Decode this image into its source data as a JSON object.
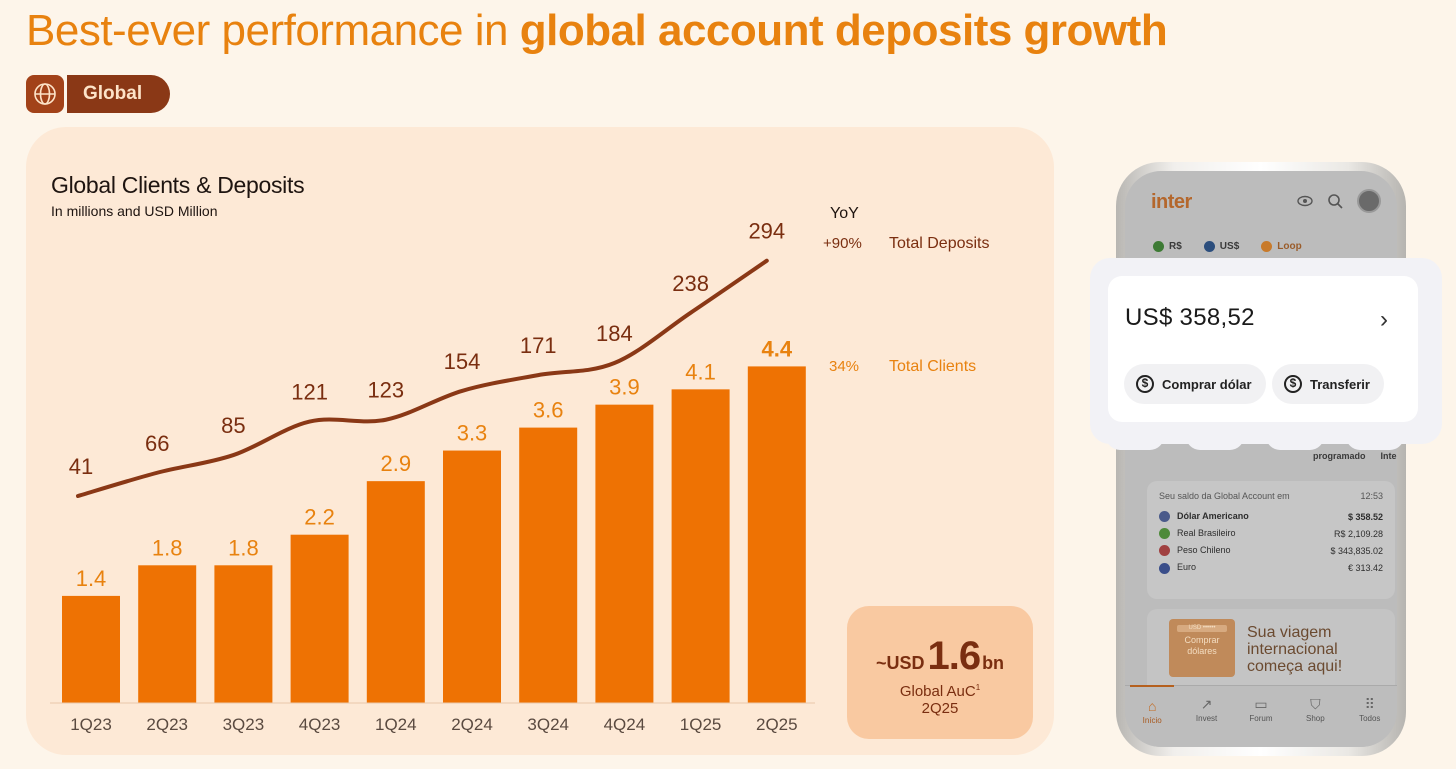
{
  "title": {
    "regular": "Best-ever performance in ",
    "bold": "global account deposits growth"
  },
  "tag": {
    "label": "Global",
    "icon": "globe-icon"
  },
  "chart_title": "Global Clients & Deposits",
  "chart_subtitle": "In millions and USD Million",
  "colors": {
    "bars": "#ee7203",
    "line": "#8a3816",
    "accent": "#e8820f",
    "background": "#fdf5ea",
    "panel": "#fde9d6"
  },
  "chart_data": {
    "type": "bar",
    "categories": [
      "1Q23",
      "2Q23",
      "3Q23",
      "4Q23",
      "1Q24",
      "2Q24",
      "3Q24",
      "4Q24",
      "1Q25",
      "2Q25"
    ],
    "series": [
      {
        "name": "Total Clients",
        "type": "bar",
        "values": [
          1.4,
          1.8,
          1.8,
          2.2,
          2.9,
          3.3,
          3.6,
          3.9,
          4.1,
          4.4
        ],
        "yoy": "34%"
      },
      {
        "name": "Total Deposits",
        "type": "line",
        "values": [
          41,
          66,
          85,
          121,
          123,
          154,
          171,
          184,
          238,
          294
        ],
        "yoy": "+90%"
      }
    ],
    "yoy_header": "YoY",
    "last_value_bold": "4.4"
  },
  "auc_box": {
    "prefix": "~USD",
    "value": "1.6",
    "unit": "bn",
    "label": "Global AuC",
    "superscript": "1",
    "period": "2Q25"
  },
  "phone": {
    "logo": "inter",
    "tabs": [
      {
        "label": "R$",
        "color": "#3d7a34"
      },
      {
        "label": "US$",
        "color": "#2c4e7d"
      },
      {
        "label": "Loop",
        "color": "#c87a2a"
      }
    ],
    "programado": "programado",
    "inter_label": "Inter",
    "card_header": "Seu saldo da Global Account em",
    "card_time": "12:53",
    "accounts": [
      {
        "name": "Dólar Americano",
        "value": "$ 358.52",
        "color": "#4a5a8a",
        "bold": true
      },
      {
        "name": "Real Brasileiro",
        "value": "R$ 2,109.28",
        "color": "#4e8a3a",
        "bold": false
      },
      {
        "name": "Peso Chileno",
        "value": "$ 343,835.02",
        "color": "#a04040",
        "bold": false
      },
      {
        "name": "Euro",
        "value": "€ 313.42",
        "color": "#3a4e8a",
        "bold": false
      }
    ],
    "banner_box": {
      "tag": "USD ••••••",
      "line1": "Comprar",
      "line2": "dólares"
    },
    "banner_text": {
      "line1": "Sua viagem",
      "line2": "internacional",
      "line3": "começa aqui!"
    },
    "nav": [
      {
        "label": "Início",
        "icon": "home-icon",
        "active": true
      },
      {
        "label": "Invest",
        "icon": "trend-icon",
        "active": false
      },
      {
        "label": "Forum",
        "icon": "chat-icon",
        "active": false
      },
      {
        "label": "Shop",
        "icon": "cart-icon",
        "active": false
      },
      {
        "label": "Todos",
        "icon": "grid-icon",
        "active": false
      }
    ]
  },
  "overlay": {
    "amount": "US$ 358,52",
    "buy_label": "Comprar dólar",
    "transfer_label": "Transferir"
  }
}
